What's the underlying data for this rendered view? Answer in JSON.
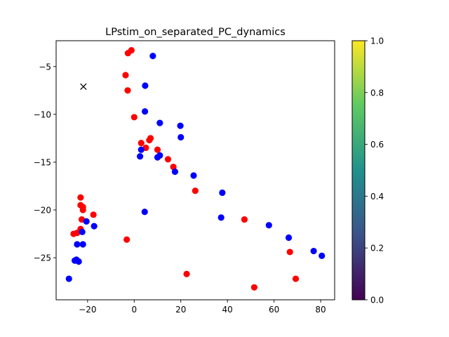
{
  "chart_data": {
    "type": "scatter",
    "title": "LPstim_on_separated_PC_dynamics",
    "xlim": [
      -33.5,
      86.0
    ],
    "ylim": [
      -29.4,
      -2.3
    ],
    "xticks": [
      -20,
      0,
      20,
      40,
      60,
      80
    ],
    "yticks": [
      -5,
      -10,
      -15,
      -20,
      -25
    ],
    "series": [
      {
        "color": "#ff0000",
        "points": [
          [
            -1.2,
            -3.3
          ],
          [
            -2.7,
            -3.6
          ],
          [
            -3.7,
            -5.9
          ],
          [
            -2.8,
            -7.5
          ],
          [
            0.0,
            -10.3
          ],
          [
            3.0,
            -13.0
          ],
          [
            5.0,
            -13.5
          ],
          [
            6.5,
            -12.7
          ],
          [
            7.0,
            -12.5
          ],
          [
            10.0,
            -13.7
          ],
          [
            14.5,
            -14.7
          ],
          [
            16.8,
            -15.5
          ],
          [
            26.2,
            -18.0
          ],
          [
            -23.0,
            -18.7
          ],
          [
            -23.0,
            -19.5
          ],
          [
            -22.0,
            -19.7
          ],
          [
            -22.0,
            -20.0
          ],
          [
            -17.5,
            -20.5
          ],
          [
            -22.5,
            -21.0
          ],
          [
            -26.0,
            -22.5
          ],
          [
            -24.5,
            -22.4
          ],
          [
            -23.0,
            -22.0
          ],
          [
            -3.2,
            -23.1
          ],
          [
            47.3,
            -21.0
          ],
          [
            66.8,
            -24.4
          ],
          [
            22.5,
            -26.7
          ],
          [
            51.5,
            -28.1
          ],
          [
            69.3,
            -27.2
          ]
        ]
      },
      {
        "color": "#0000ff",
        "points": [
          [
            8.0,
            -3.9
          ],
          [
            4.7,
            -7.0
          ],
          [
            4.6,
            -9.7
          ],
          [
            11.0,
            -10.9
          ],
          [
            19.8,
            -11.2
          ],
          [
            20.0,
            -12.4
          ],
          [
            3.0,
            -13.7
          ],
          [
            2.5,
            -14.4
          ],
          [
            10.0,
            -14.5
          ],
          [
            11.0,
            -14.3
          ],
          [
            17.5,
            -16.0
          ],
          [
            25.5,
            -16.4
          ],
          [
            37.8,
            -18.2
          ],
          [
            37.3,
            -20.8
          ],
          [
            4.5,
            -20.2
          ],
          [
            57.8,
            -21.6
          ],
          [
            66.3,
            -22.9
          ],
          [
            77.0,
            -24.3
          ],
          [
            80.5,
            -24.8
          ],
          [
            -20.5,
            -21.2
          ],
          [
            -17.2,
            -21.7
          ],
          [
            -22.3,
            -22.3
          ],
          [
            -24.5,
            -23.6
          ],
          [
            -22.0,
            -23.6
          ],
          [
            -25.5,
            -25.3
          ],
          [
            -24.8,
            -25.2
          ],
          [
            -23.8,
            -25.4
          ],
          [
            -28.0,
            -27.2
          ]
        ]
      }
    ],
    "markers": [
      {
        "shape": "x",
        "color": "#000000",
        "x": -21.8,
        "y": -7.1
      }
    ],
    "colorbar": {
      "min": 0.0,
      "max": 1.0,
      "ticks": [
        "0.0",
        "0.2",
        "0.4",
        "0.6",
        "0.8",
        "1.0"
      ],
      "colormap": [
        "#440154",
        "#3b528b",
        "#21918c",
        "#5ec962",
        "#fde725"
      ]
    }
  }
}
